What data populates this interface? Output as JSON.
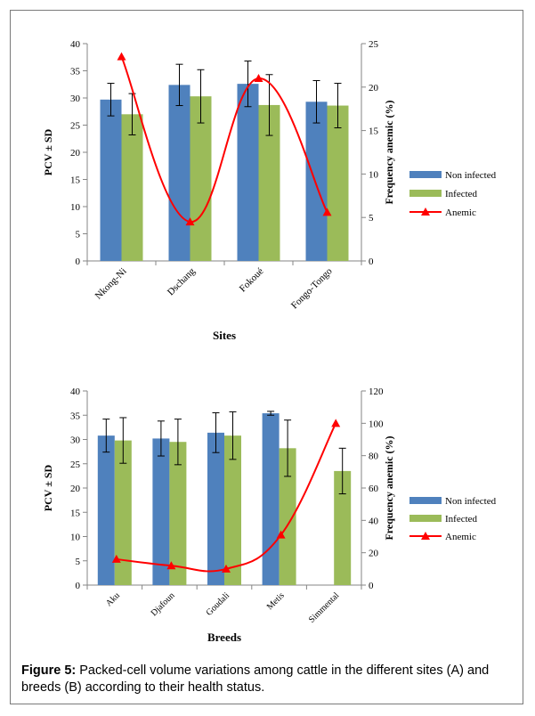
{
  "chart_data": [
    {
      "type": "bar",
      "panel": "A",
      "categories": [
        "Nkong-Ni",
        "Dschang",
        "Fokoué",
        "Fongo-Tongo"
      ],
      "series": [
        {
          "name": "Non infected",
          "kind": "bar",
          "axis": "left",
          "color": "#4f81bd",
          "values": [
            29.7,
            32.4,
            32.6,
            29.3
          ],
          "error": [
            3.0,
            3.8,
            4.2,
            3.9
          ]
        },
        {
          "name": "Infected",
          "kind": "bar",
          "axis": "left",
          "color": "#9bbb59",
          "values": [
            27.0,
            30.3,
            28.7,
            28.6
          ],
          "error": [
            3.8,
            4.9,
            5.6,
            4.1
          ]
        },
        {
          "name": "Anemic",
          "kind": "line",
          "axis": "right",
          "color": "#ff0000",
          "values": [
            23.5,
            4.5,
            21.0,
            5.6
          ]
        }
      ],
      "xlabel": "Sites",
      "ylabel": "PCV ± SD",
      "y2label": "Frequency anemic (%)",
      "ylim": [
        0,
        40
      ],
      "y2lim": [
        0,
        25
      ],
      "yticks": [
        "0",
        "5",
        "10",
        "15",
        "20",
        "25",
        "30",
        "35",
        "40"
      ],
      "y2ticks": [
        "0",
        "5",
        "10",
        "15",
        "20",
        "25"
      ],
      "legend": "right"
    },
    {
      "type": "bar",
      "panel": "B",
      "categories": [
        "Aku",
        "Djafoun",
        "Goudali",
        "Metis",
        "Simmental"
      ],
      "series": [
        {
          "name": "Non infected",
          "kind": "bar",
          "axis": "left",
          "color": "#4f81bd",
          "values": [
            30.8,
            30.2,
            31.4,
            35.4,
            null
          ],
          "error": [
            3.4,
            3.6,
            4.1,
            0.4,
            null
          ]
        },
        {
          "name": "Infected",
          "kind": "bar",
          "axis": "left",
          "color": "#9bbb59",
          "values": [
            29.8,
            29.5,
            30.8,
            28.2,
            23.5
          ],
          "error": [
            4.7,
            4.7,
            4.9,
            5.8,
            4.7
          ]
        },
        {
          "name": "Anemic",
          "kind": "line",
          "axis": "right",
          "color": "#ff0000",
          "values": [
            16,
            12,
            10,
            31,
            100
          ]
        }
      ],
      "xlabel": "Breeds",
      "ylabel": "PCV ± SD",
      "y2label": "Frequency anemic (%)",
      "ylim": [
        0,
        40
      ],
      "y2lim": [
        0,
        120
      ],
      "yticks": [
        "0",
        "5",
        "10",
        "15",
        "20",
        "25",
        "30",
        "35",
        "40"
      ],
      "y2ticks": [
        "0",
        "20",
        "40",
        "60",
        "80",
        "100",
        "120"
      ],
      "legend": "right"
    }
  ],
  "caption": {
    "label": "Figure 5:",
    "text": " Packed-cell volume variations among cattle in the different sites (A) and breeds (B) according to their health status."
  }
}
